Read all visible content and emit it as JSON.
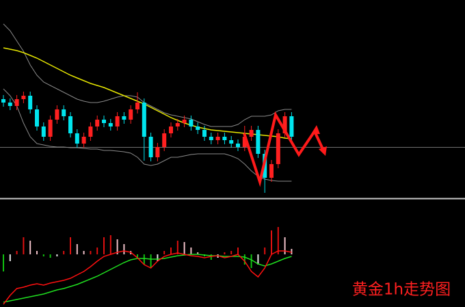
{
  "chart_data": {
    "type": "candlestick",
    "title": "黄金1h走势图",
    "open": [
      155,
      150,
      145,
      155,
      160,
      140,
      115,
      100,
      125,
      140,
      130,
      105,
      90,
      100,
      115,
      125,
      120,
      115,
      130,
      125,
      140,
      150,
      100,
      70,
      85,
      105,
      115,
      120,
      125,
      115,
      110,
      100,
      95,
      100,
      95,
      90,
      85,
      100,
      110,
      75,
      40,
      60,
      105,
      130
    ],
    "high": [
      161,
      156,
      161,
      166,
      166,
      146,
      121,
      131,
      146,
      146,
      136,
      111,
      106,
      121,
      131,
      131,
      126,
      136,
      136,
      146,
      165,
      156,
      106,
      91,
      111,
      121,
      126,
      131,
      131,
      121,
      116,
      106,
      106,
      106,
      101,
      96,
      116,
      116,
      116,
      81,
      66,
      111,
      136,
      136
    ],
    "low": [
      144,
      139,
      139,
      149,
      134,
      109,
      94,
      94,
      119,
      124,
      99,
      84,
      84,
      94,
      109,
      114,
      109,
      109,
      119,
      119,
      134,
      65,
      64,
      64,
      79,
      99,
      109,
      114,
      109,
      104,
      94,
      89,
      89,
      89,
      84,
      79,
      79,
      94,
      69,
      18,
      34,
      54,
      99,
      94
    ],
    "close": [
      150,
      145,
      155,
      160,
      140,
      115,
      100,
      125,
      140,
      130,
      105,
      90,
      100,
      115,
      125,
      120,
      115,
      130,
      125,
      140,
      150,
      100,
      70,
      85,
      105,
      115,
      120,
      125,
      115,
      110,
      100,
      95,
      100,
      95,
      90,
      85,
      100,
      110,
      75,
      40,
      60,
      105,
      130,
      100
    ],
    "ma": [
      230,
      228,
      226,
      223,
      219,
      215,
      210,
      205,
      200,
      195,
      190,
      186,
      182,
      178,
      175,
      172,
      168,
      164,
      160,
      156,
      152,
      148,
      143,
      138,
      133,
      128,
      124,
      120,
      117,
      114,
      112,
      110,
      109,
      108,
      107,
      106,
      105,
      104,
      103,
      102,
      101,
      100,
      98,
      97
    ],
    "upper": [
      265,
      255,
      240,
      225,
      205,
      190,
      180,
      175,
      170,
      165,
      160,
      155,
      152,
      150,
      150,
      152,
      155,
      158,
      160,
      160,
      158,
      150,
      145,
      140,
      135,
      132,
      130,
      128,
      126,
      122,
      118,
      115,
      115,
      115,
      115,
      118,
      125,
      130,
      130,
      130,
      132,
      138,
      140,
      140
    ],
    "lower": [
      170,
      160,
      145,
      120,
      100,
      90,
      88,
      86,
      85,
      85,
      84,
      84,
      83,
      82,
      82,
      80,
      80,
      79,
      78,
      76,
      70,
      60,
      58,
      60,
      65,
      70,
      70,
      72,
      74,
      75,
      75,
      75,
      75,
      75,
      72,
      68,
      60,
      50,
      42,
      38,
      36,
      35,
      35,
      35
    ],
    "hist": [
      -25,
      -10,
      5,
      25,
      20,
      5,
      -3,
      -5,
      -3,
      5,
      25,
      15,
      5,
      5,
      10,
      25,
      28,
      22,
      15,
      5,
      -5,
      -15,
      -20,
      -10,
      5,
      10,
      20,
      18,
      10,
      3,
      -3,
      -8,
      -5,
      3,
      5,
      10,
      -15,
      -20,
      -15,
      10,
      35,
      40,
      25,
      8
    ],
    "dif": [
      -73,
      -60,
      -50,
      -48,
      -45,
      -43,
      -45,
      -42,
      -40,
      -38,
      -35,
      -30,
      -25,
      -18,
      -10,
      -3,
      0,
      3,
      5,
      3,
      -5,
      -15,
      -20,
      -10,
      -3,
      0,
      2,
      0,
      -2,
      -3,
      -5,
      -3,
      -2,
      -5,
      -3,
      0,
      -10,
      -25,
      -33,
      -20,
      0,
      5,
      5,
      3
    ],
    "dea": [
      -70,
      -68,
      -66,
      -64,
      -62,
      -60,
      -58,
      -55,
      -52,
      -50,
      -47,
      -44,
      -40,
      -36,
      -32,
      -27,
      -22,
      -17,
      -12,
      -8,
      -6,
      -6,
      -7,
      -7,
      -6,
      -4,
      -2,
      -1,
      0,
      0,
      -1,
      -2,
      -2,
      -3,
      -3,
      -3,
      -4,
      -8,
      -14,
      -17,
      -14,
      -10,
      -6,
      -3
    ],
    "up_color": "#ff2020",
    "down_color": "#00e5ee",
    "ma_color": "#e8e800",
    "band_color": "#8a8a8a",
    "dif_color": "#ff1010",
    "dea_color": "#20e020"
  }
}
